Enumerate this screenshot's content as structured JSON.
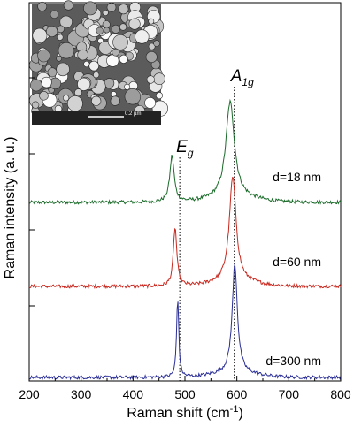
{
  "chart_data": {
    "type": "line",
    "xlabel": "Raman shift (cm",
    "xlabel_sup": "-1",
    "xlabel_close": ")",
    "ylabel": "Raman intensity (a. u.)",
    "xlim": [
      200,
      800
    ],
    "xticks": [
      "200",
      "300",
      "400",
      "500",
      "600",
      "700",
      "800"
    ],
    "grid": false,
    "peaks": [
      {
        "label": "E",
        "sub": "g",
        "x": 490
      },
      {
        "label": "A",
        "sub": "1g",
        "x": 595
      }
    ],
    "series": [
      {
        "name": "d=18 nm",
        "color": "#1b6b2a",
        "offset": 2.0,
        "baseline": 0.0,
        "peaks": [
          {
            "x": 475,
            "h": 0.55,
            "w": 5
          },
          {
            "x": 587,
            "h": 1.15,
            "w": 10
          }
        ]
      },
      {
        "name": "d=60 nm",
        "color": "#c8281e",
        "offset": 1.0,
        "baseline": 0.0,
        "peaks": [
          {
            "x": 481,
            "h": 0.7,
            "w": 4
          },
          {
            "x": 592,
            "h": 1.25,
            "w": 8
          }
        ]
      },
      {
        "name": "d=300 nm",
        "color": "#2a2e96",
        "offset": 0.0,
        "baseline": 0.0,
        "peaks": [
          {
            "x": 486,
            "h": 0.95,
            "w": 2.5
          },
          {
            "x": 596,
            "h": 1.3,
            "w": 6
          }
        ]
      }
    ],
    "inset": {
      "type": "SEM micrograph",
      "scale_bar": "0.2 µm"
    }
  },
  "colors": {
    "axis": "#000000",
    "inset_bg": "#5b5b5b"
  }
}
